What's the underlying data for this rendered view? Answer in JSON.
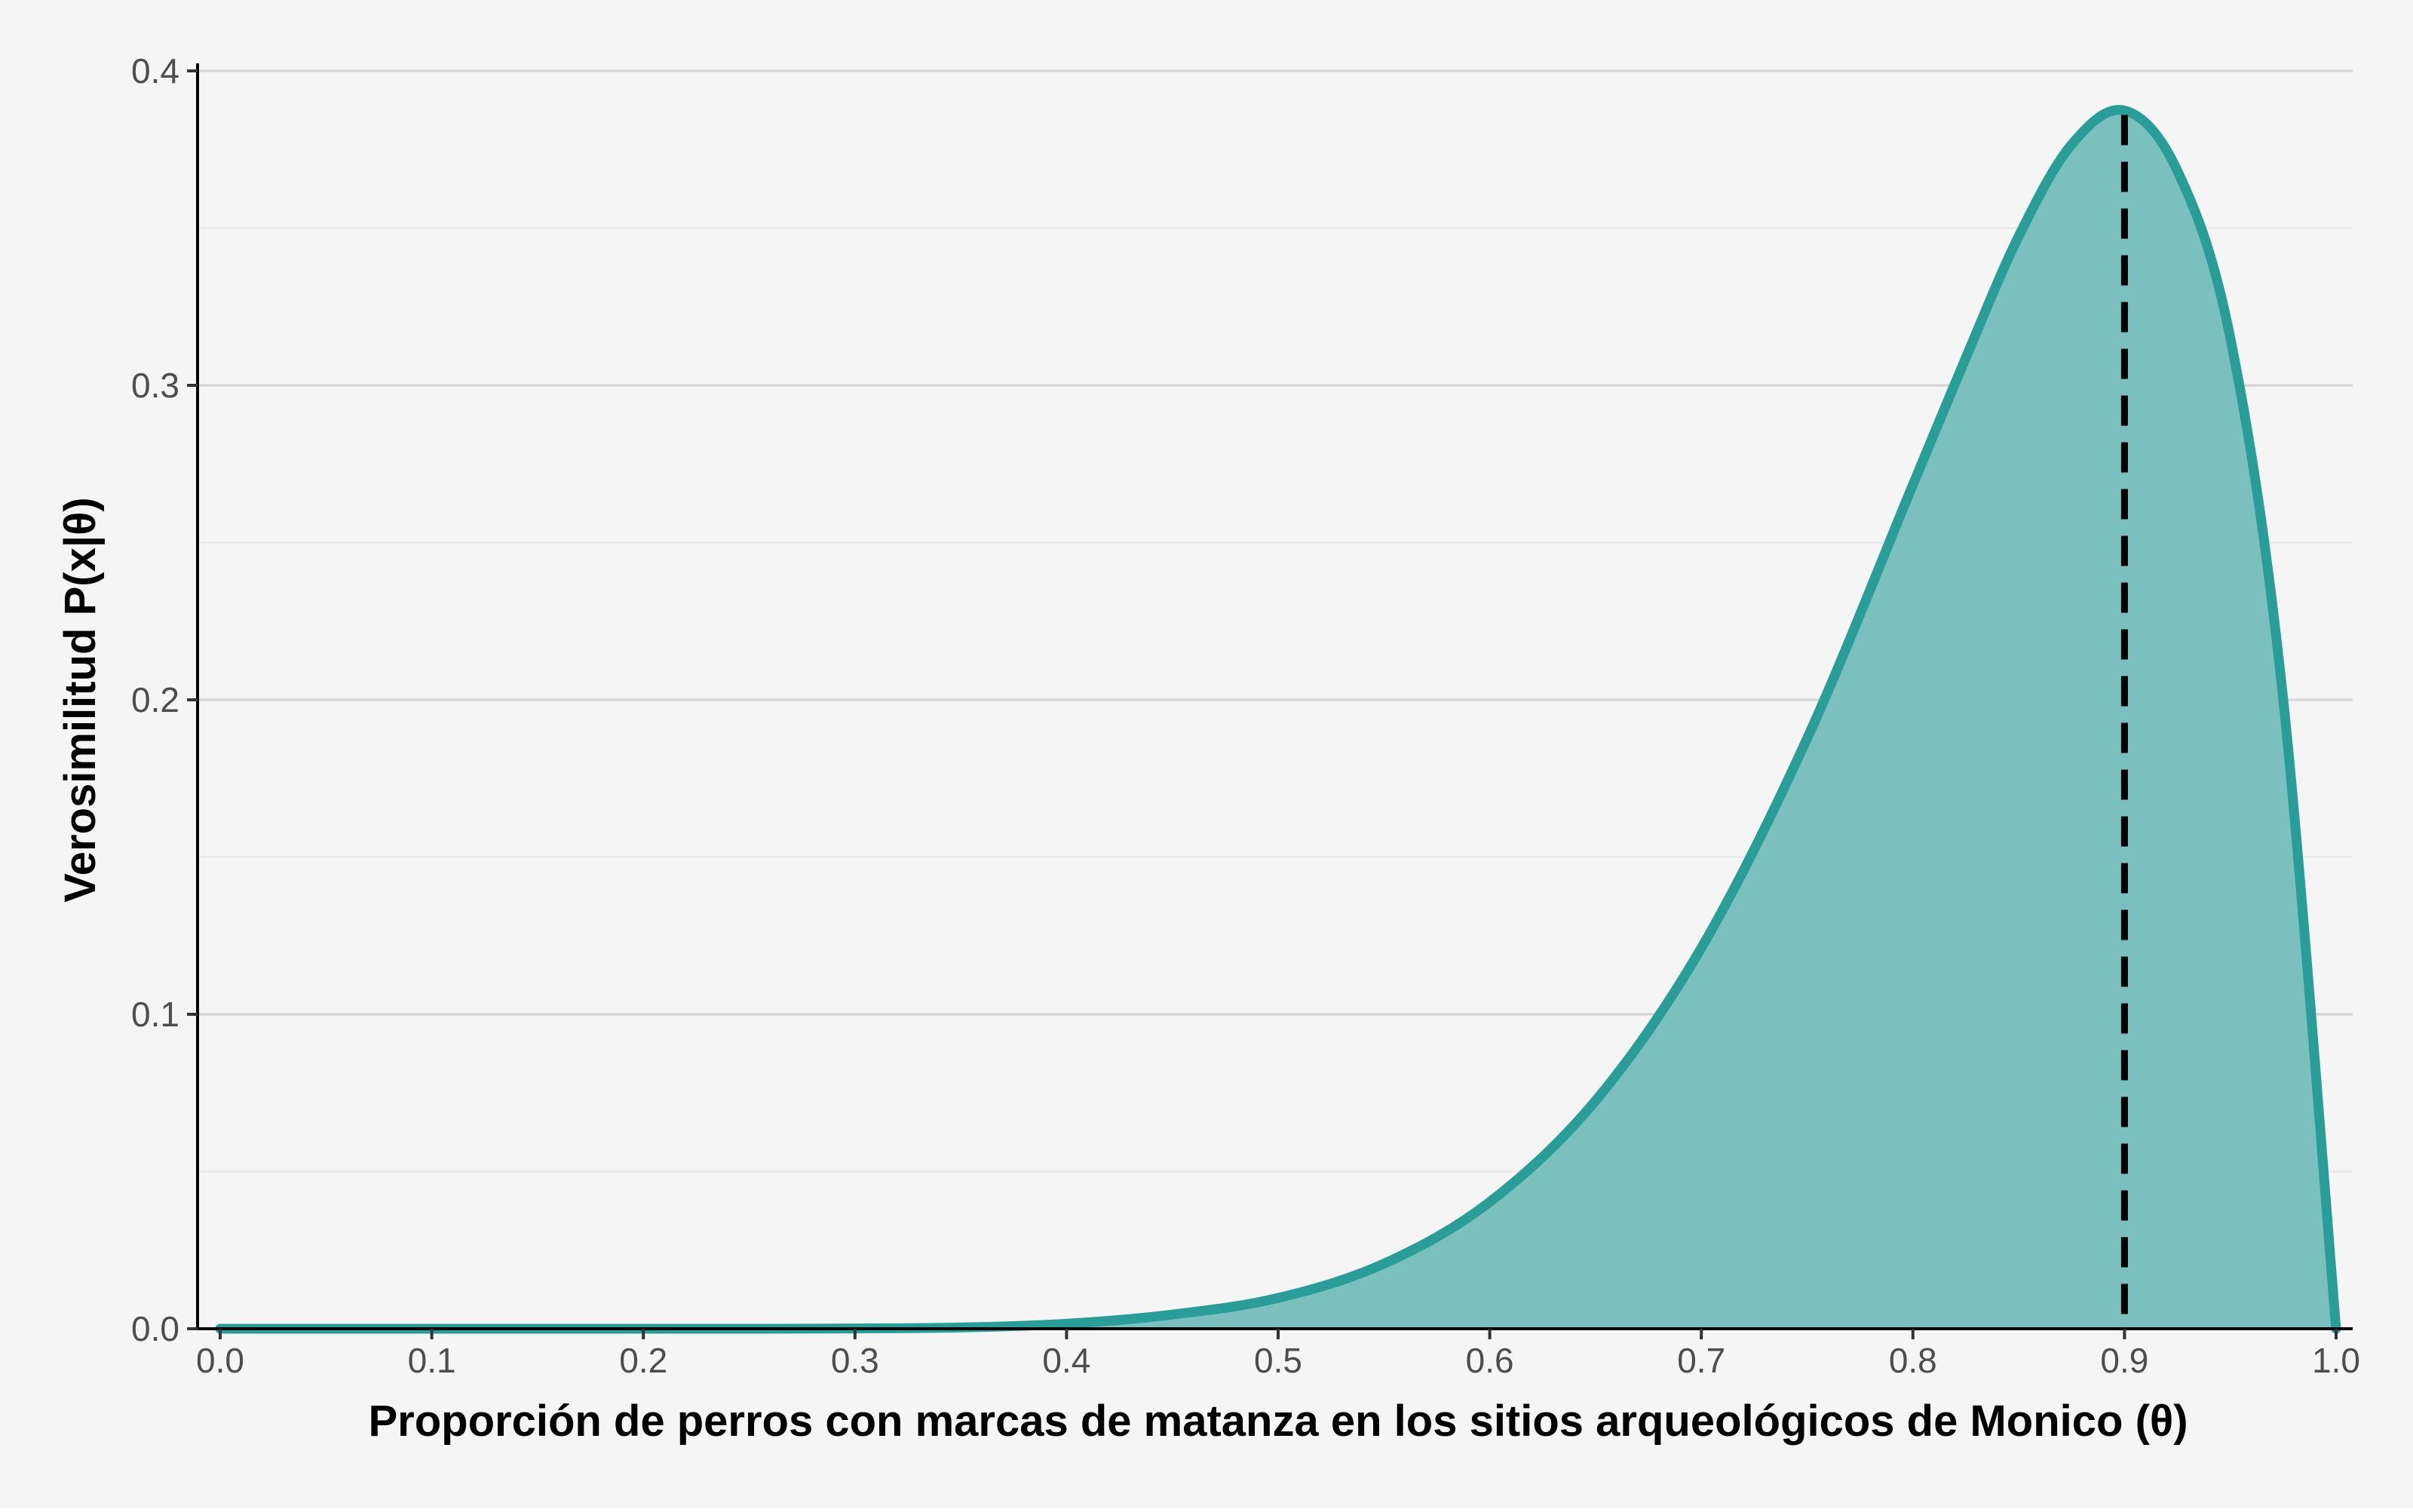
{
  "colors": {
    "background": "#f5f5f5",
    "outer_background": "#ffffff",
    "curve": "#2a9d99",
    "fill": "#7bbfbf",
    "grid_major": "#d3d3d3",
    "grid_minor": "#ebebeb",
    "axis": "#000000",
    "mle_line": "#000000"
  },
  "chart_data": {
    "type": "area",
    "title": "",
    "xlabel": "Proporción de perros con marcas de matanza en los sitios arqueológicos de Monico (θ)",
    "ylabel": "Verosimilitud P(x|θ)",
    "xlim": [
      0,
      1
    ],
    "ylim": [
      0,
      0.4
    ],
    "x_ticks": [
      0.0,
      0.1,
      0.2,
      0.3,
      0.4,
      0.5,
      0.6,
      0.7,
      0.8,
      0.9,
      1.0
    ],
    "x_tick_labels": [
      "0.0",
      "0.1",
      "0.2",
      "0.3",
      "0.4",
      "0.5",
      "0.6",
      "0.7",
      "0.8",
      "0.9",
      "1.0"
    ],
    "y_ticks": [
      0.0,
      0.1,
      0.2,
      0.3,
      0.4
    ],
    "y_tick_labels": [
      "0.0",
      "0.1",
      "0.2",
      "0.3",
      "0.4"
    ],
    "grid": true,
    "legend": "none",
    "vertical_line": {
      "x": 0.9,
      "style": "dashed"
    },
    "series": [
      {
        "x": [
          0.0,
          0.05,
          0.1,
          0.15,
          0.2,
          0.25,
          0.3,
          0.35,
          0.4,
          0.45,
          0.5,
          0.55,
          0.6,
          0.65,
          0.7,
          0.75,
          0.8,
          0.825,
          0.85,
          0.875,
          0.9,
          0.925,
          0.95,
          0.975,
          1.0
        ],
        "y": [
          0.0,
          0.0,
          0.0,
          0.0,
          0.0,
          0.0,
          0.0001,
          0.0004,
          0.0016,
          0.0045,
          0.0098,
          0.0207,
          0.0403,
          0.0725,
          0.1211,
          0.1877,
          0.2684,
          0.3087,
          0.3474,
          0.3766,
          0.3874,
          0.3682,
          0.3151,
          0.2003,
          0.0
        ]
      }
    ]
  }
}
